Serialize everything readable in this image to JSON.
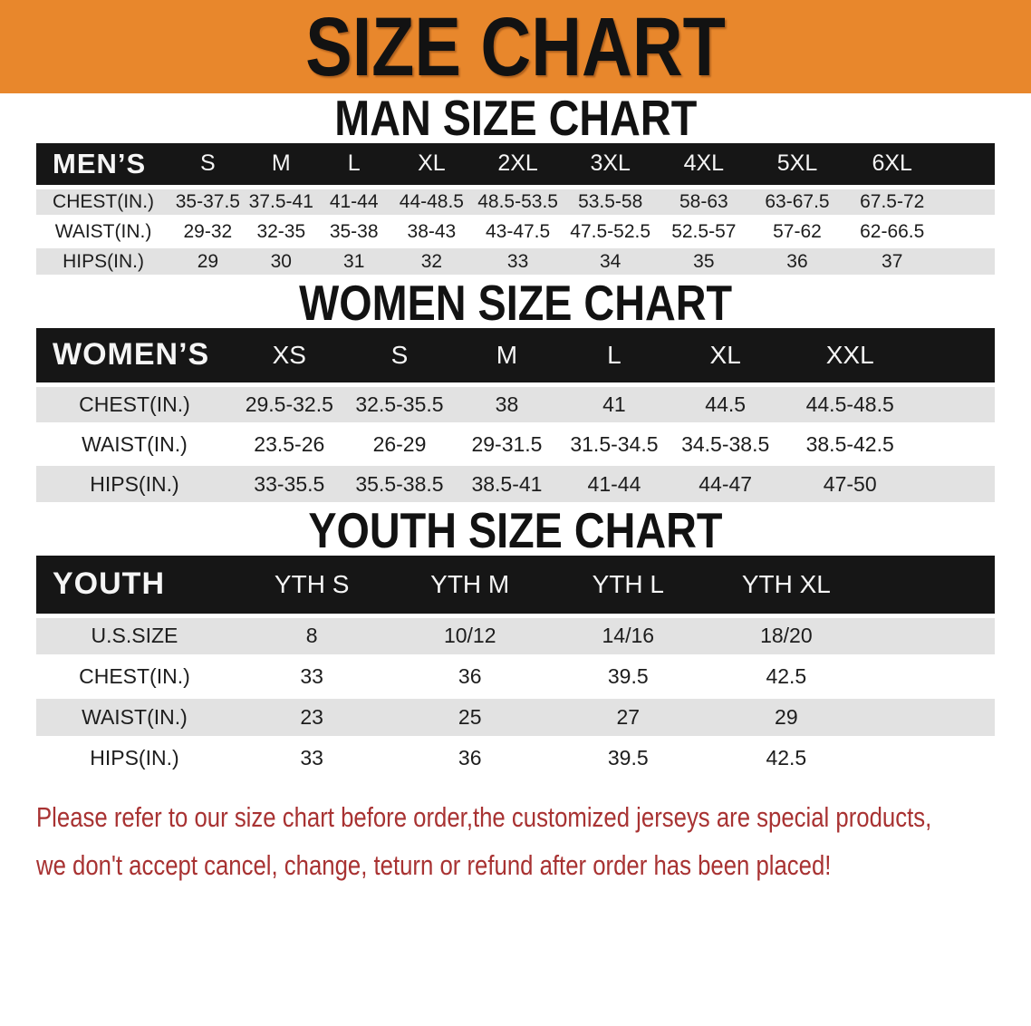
{
  "banner": {
    "title": "SIZE CHART",
    "bg_color": "#e8872c"
  },
  "colors": {
    "banner_bg": "#e8872c",
    "table_header_bg": "#161616",
    "row_stripe": "#e2e2e2",
    "cell_text": "#1d1d1d",
    "footer_text": "#a83232"
  },
  "sections": [
    {
      "heading": "MAN SIZE CHART",
      "table": {
        "label": "MEN’S",
        "columns": [
          "S",
          "M",
          "L",
          "XL",
          "2XL",
          "3XL",
          "4XL",
          "5XL",
          "6XL"
        ],
        "rows": [
          {
            "label": "CHEST(IN.)",
            "values": [
              "35-37.5",
              "37.5-41",
              "41-44",
              "44-48.5",
              "48.5-53.5",
              "53.5-58",
              "58-63",
              "63-67.5",
              "67.5-72"
            ]
          },
          {
            "label": "WAIST(IN.)",
            "values": [
              "29-32",
              "32-35",
              "35-38",
              "38-43",
              "43-47.5",
              "47.5-52.5",
              "52.5-57",
              "57-62",
              "62-66.5"
            ]
          },
          {
            "label": "HIPS(IN.)",
            "values": [
              "29",
              "30",
              "31",
              "32",
              "33",
              "34",
              "35",
              "36",
              "37"
            ]
          }
        ]
      }
    },
    {
      "heading": "WOMEN SIZE CHART",
      "table": {
        "label": "WOMEN’S",
        "columns": [
          "XS",
          "S",
          "M",
          "L",
          "XL",
          "XXL"
        ],
        "rows": [
          {
            "label": "CHEST(IN.)",
            "values": [
              "29.5-32.5",
              "32.5-35.5",
              "38",
              "41",
              "44.5",
              "44.5-48.5"
            ]
          },
          {
            "label": "WAIST(IN.)",
            "values": [
              "23.5-26",
              "26-29",
              "29-31.5",
              "31.5-34.5",
              "34.5-38.5",
              "38.5-42.5"
            ]
          },
          {
            "label": "HIPS(IN.)",
            "values": [
              "33-35.5",
              "35.5-38.5",
              "38.5-41",
              "41-44",
              "44-47",
              "47-50"
            ]
          }
        ]
      }
    },
    {
      "heading": "YOUTH SIZE CHART",
      "table": {
        "label": "YOUTH",
        "columns": [
          "YTH S",
          "YTH M",
          "YTH L",
          "YTH XL"
        ],
        "rows": [
          {
            "label": "U.S.SIZE",
            "values": [
              "8",
              "10/12",
              "14/16",
              "18/20"
            ]
          },
          {
            "label": "CHEST(IN.)",
            "values": [
              "33",
              "36",
              "39.5",
              "42.5"
            ]
          },
          {
            "label": "WAIST(IN.)",
            "values": [
              "23",
              "25",
              "27",
              "29"
            ]
          },
          {
            "label": "HIPS(IN.)",
            "values": [
              "33",
              "36",
              "39.5",
              "42.5"
            ]
          }
        ]
      }
    }
  ],
  "footer": {
    "line1": "Please refer to our size chart before order,the customized jerseys are special products,",
    "line2": "we don't accept cancel, change, teturn or refund after order has been placed!"
  }
}
